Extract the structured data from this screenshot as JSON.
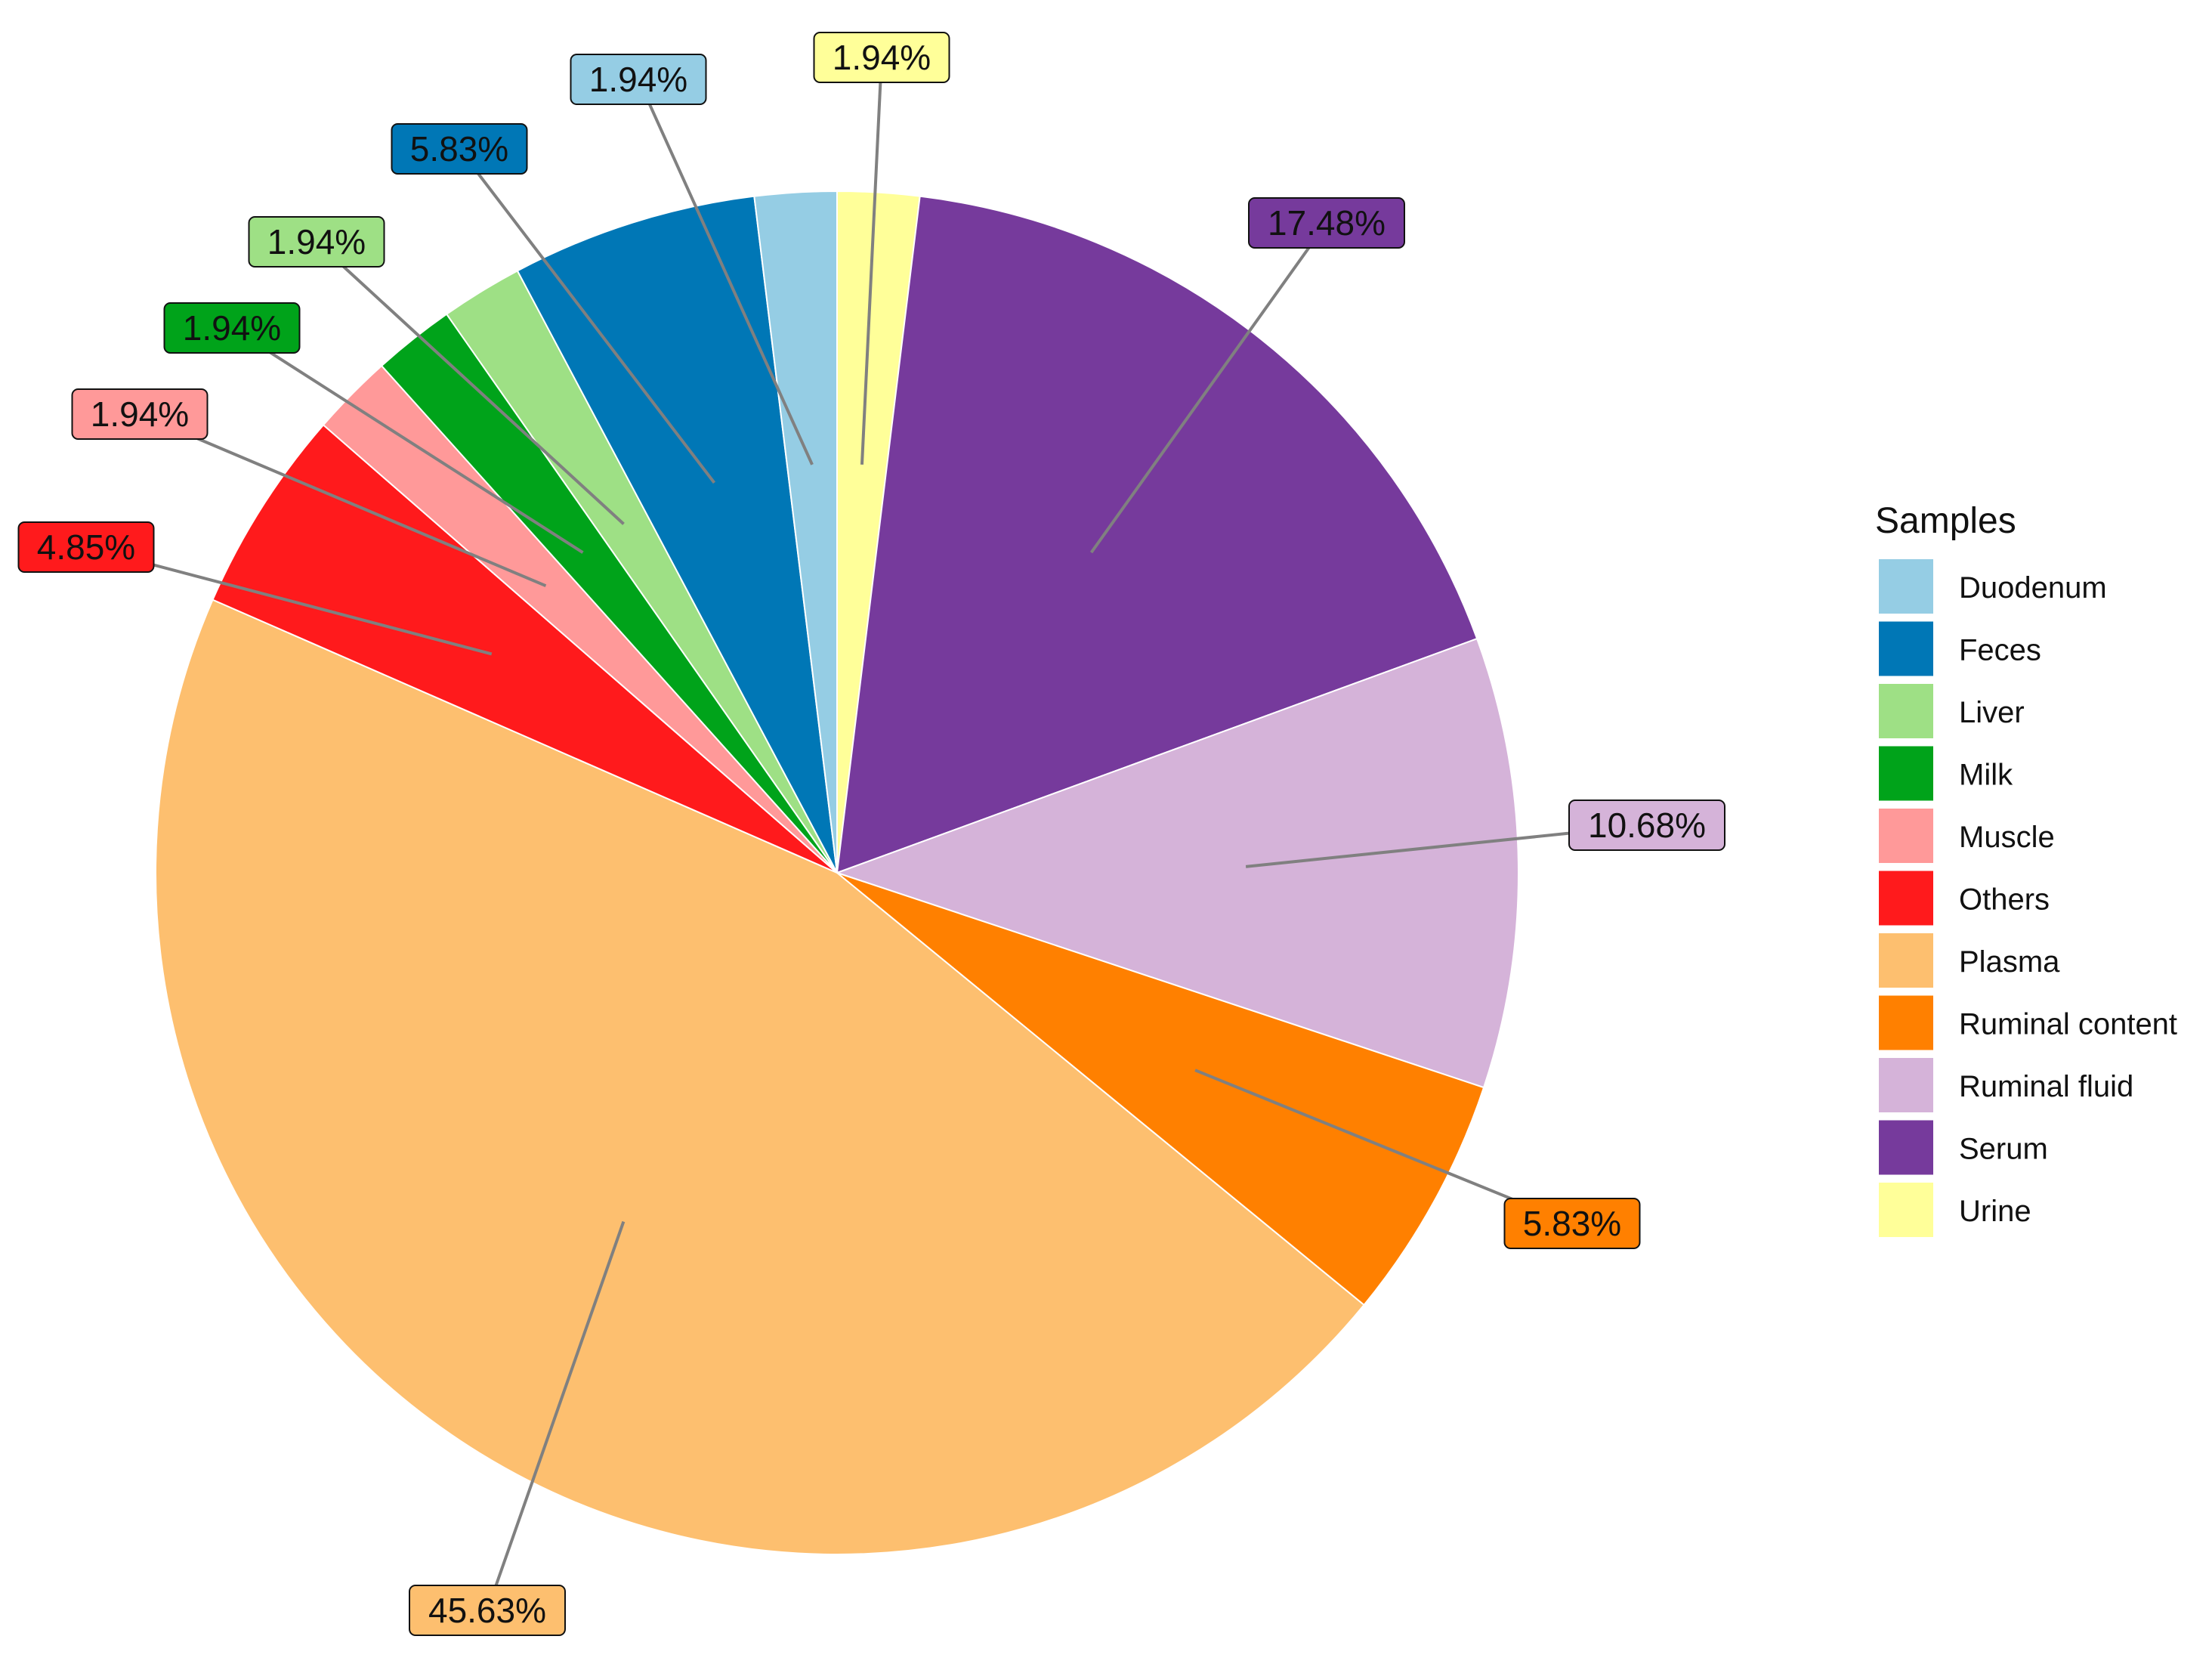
{
  "chart_data": {
    "type": "pie",
    "legend": {
      "title": "Samples",
      "position": "right"
    },
    "slices": [
      {
        "name": "Urine",
        "value": 1.94,
        "label": "1.94%",
        "color": "#FFFF99"
      },
      {
        "name": "Serum",
        "value": 17.48,
        "label": "17.48%",
        "color": "#763A9C"
      },
      {
        "name": "Ruminal fluid",
        "value": 10.68,
        "label": "10.68%",
        "color": "#D5B3D9"
      },
      {
        "name": "Ruminal content",
        "value": 5.83,
        "label": "5.83%",
        "color": "#FF8000"
      },
      {
        "name": "Plasma",
        "value": 45.63,
        "label": "45.63%",
        "color": "#FDBF6F"
      },
      {
        "name": "Others",
        "value": 4.85,
        "label": "4.85%",
        "color": "#FF1A1C"
      },
      {
        "name": "Muscle",
        "value": 1.94,
        "label": "1.94%",
        "color": "#FF9999"
      },
      {
        "name": "Milk",
        "value": 1.94,
        "label": "1.94%",
        "color": "#00A31A"
      },
      {
        "name": "Liver",
        "value": 1.94,
        "label": "1.94%",
        "color": "#9EE085"
      },
      {
        "name": "Feces",
        "value": 5.83,
        "label": "5.83%",
        "color": "#0077B6"
      },
      {
        "name": "Duodenum",
        "value": 1.94,
        "label": "1.94%",
        "color": "#95CDE4"
      }
    ],
    "legend_order": [
      "Duodenum",
      "Feces",
      "Liver",
      "Milk",
      "Muscle",
      "Others",
      "Plasma",
      "Ruminal content",
      "Ruminal fluid",
      "Serum",
      "Urine"
    ],
    "direction": "clockwise from top"
  }
}
